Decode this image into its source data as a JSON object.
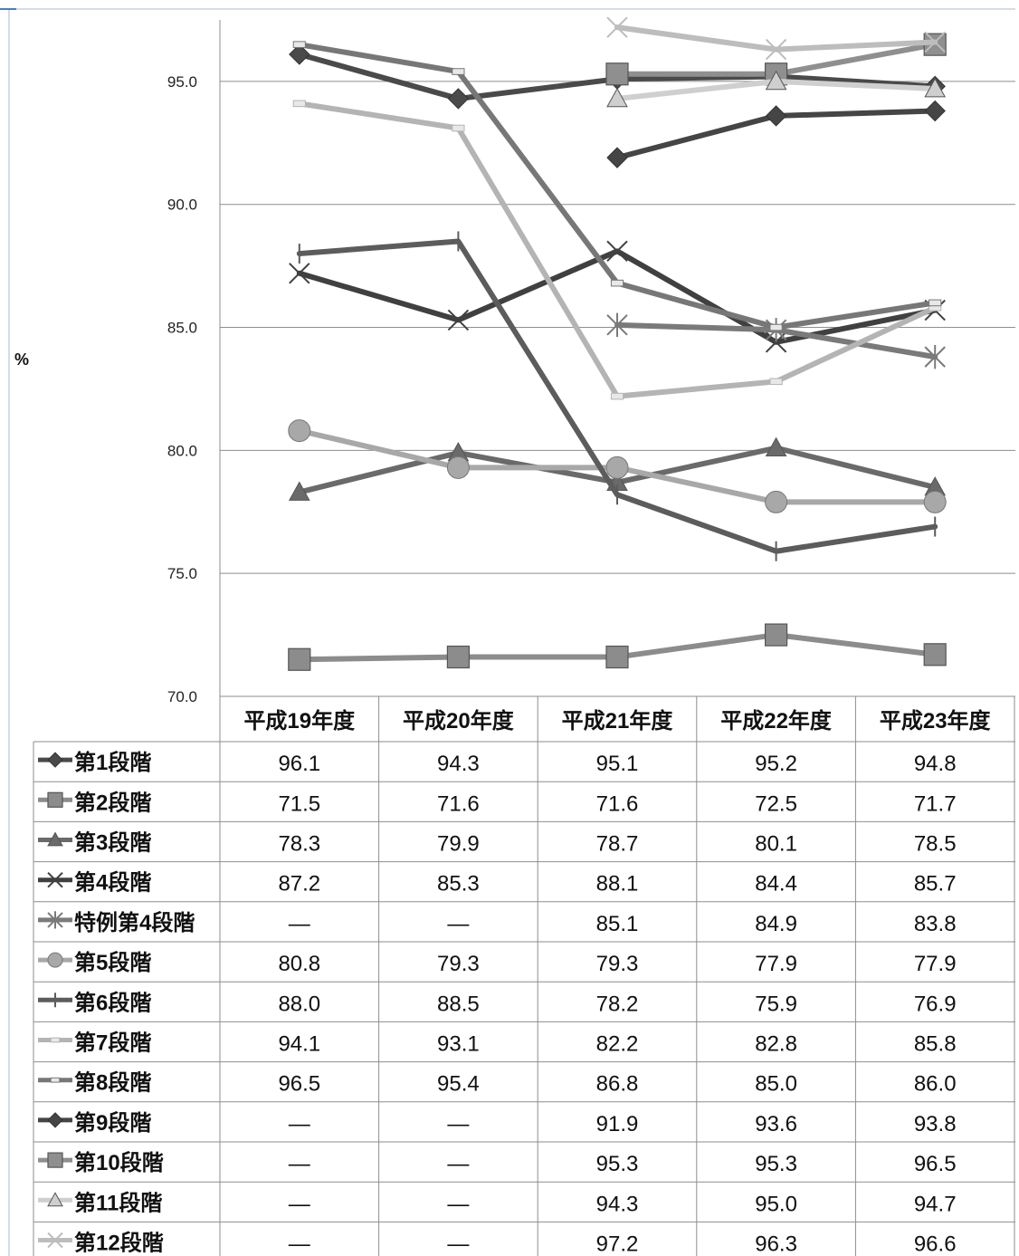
{
  "chart_data": {
    "type": "line",
    "ylabel": "%",
    "ylim": [
      70,
      97.5
    ],
    "yticks": [
      "70.0",
      "75.0",
      "80.0",
      "85.0",
      "90.0",
      "95.0"
    ],
    "categories": [
      "平成19年度",
      "平成20年度",
      "平成21年度",
      "平成22年度",
      "平成23年度"
    ],
    "grid": true,
    "legend": "table-below",
    "series": [
      {
        "name": "第1段階",
        "values": [
          96.1,
          94.3,
          95.1,
          95.2,
          94.8
        ],
        "cells": [
          "96.1",
          "94.3",
          "95.1",
          "95.2",
          "94.8"
        ],
        "color": "#4a4a4a",
        "marker": "diamond"
      },
      {
        "name": "第2段階",
        "values": [
          71.5,
          71.6,
          71.6,
          72.5,
          71.7
        ],
        "cells": [
          "71.5",
          "71.6",
          "71.6",
          "72.5",
          "71.7"
        ],
        "color": "#8c8c8c",
        "marker": "square"
      },
      {
        "name": "第3段階",
        "values": [
          78.3,
          79.9,
          78.7,
          80.1,
          78.5
        ],
        "cells": [
          "78.3",
          "79.9",
          "78.7",
          "80.1",
          "78.5"
        ],
        "color": "#6a6a6a",
        "marker": "triangle"
      },
      {
        "name": "第4段階",
        "values": [
          87.2,
          85.3,
          88.1,
          84.4,
          85.7
        ],
        "cells": [
          "87.2",
          "85.3",
          "88.1",
          "84.4",
          "85.7"
        ],
        "color": "#404040",
        "marker": "x"
      },
      {
        "name": "特例第4段階",
        "values": [
          null,
          null,
          85.1,
          84.9,
          83.8
        ],
        "cells": [
          "—",
          "—",
          "85.1",
          "84.9",
          "83.8"
        ],
        "color": "#7a7a7a",
        "marker": "star"
      },
      {
        "name": "第5段階",
        "values": [
          80.8,
          79.3,
          79.3,
          77.9,
          77.9
        ],
        "cells": [
          "80.8",
          "79.3",
          "79.3",
          "77.9",
          "77.9"
        ],
        "color": "#a8a8a8",
        "marker": "circle"
      },
      {
        "name": "第6段階",
        "values": [
          88.0,
          88.5,
          78.2,
          75.9,
          76.9
        ],
        "cells": [
          "88.0",
          "88.5",
          "78.2",
          "75.9",
          "76.9"
        ],
        "color": "#5c5c5c",
        "marker": "plus"
      },
      {
        "name": "第7段階",
        "values": [
          94.1,
          93.1,
          82.2,
          82.8,
          85.8
        ],
        "cells": [
          "94.1",
          "93.1",
          "82.2",
          "82.8",
          "85.8"
        ],
        "color": "#b4b4b4",
        "marker": "dash"
      },
      {
        "name": "第8段階",
        "values": [
          96.5,
          95.4,
          86.8,
          85.0,
          86.0
        ],
        "cells": [
          "96.5",
          "95.4",
          "86.8",
          "85.0",
          "86.0"
        ],
        "color": "#777777",
        "marker": "dash"
      },
      {
        "name": "第9段階",
        "values": [
          null,
          null,
          91.9,
          93.6,
          93.8
        ],
        "cells": [
          "—",
          "—",
          "91.9",
          "93.6",
          "93.8"
        ],
        "color": "#454545",
        "marker": "diamond"
      },
      {
        "name": "第10段階",
        "values": [
          null,
          null,
          95.3,
          95.3,
          96.5
        ],
        "cells": [
          "—",
          "—",
          "95.3",
          "95.3",
          "96.5"
        ],
        "color": "#8f8f8f",
        "marker": "square"
      },
      {
        "name": "第11段階",
        "values": [
          null,
          null,
          94.3,
          95.0,
          94.7
        ],
        "cells": [
          "—",
          "—",
          "94.3",
          "95.0",
          "94.7"
        ],
        "color": "#cfcfcf",
        "marker": "triangle"
      },
      {
        "name": "第12段階",
        "values": [
          null,
          null,
          97.2,
          96.3,
          96.6
        ],
        "cells": [
          "—",
          "—",
          "97.2",
          "96.3",
          "96.6"
        ],
        "color": "#bdbdbd",
        "marker": "x"
      }
    ]
  }
}
